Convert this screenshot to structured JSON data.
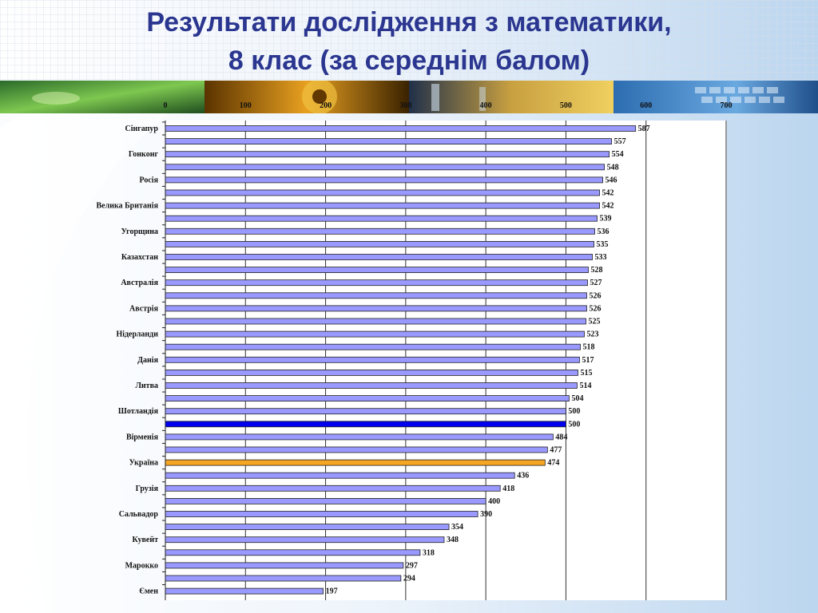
{
  "slide": {
    "title_line1": "Результати  дослідження з математики,",
    "title_line2": "8 клас (за середнім балом)"
  },
  "colors": {
    "title": "#2b3690",
    "bar_default": "#9999ff",
    "bar_reference": "#0000ee",
    "bar_ukraine": "#f5a623"
  },
  "chart_data": {
    "type": "bar",
    "orientation": "horizontal",
    "xlim": [
      0,
      700
    ],
    "xticks": [
      0,
      100,
      200,
      300,
      400,
      500,
      600,
      700
    ],
    "xaxis_position": "top",
    "grid": true,
    "categories": [
      "Сінгапур",
      "",
      "Гонконг",
      "",
      "Росія",
      "",
      "Велика Британія",
      "",
      "Угорщина",
      "",
      "Казахстан",
      "",
      "Австралія",
      "",
      "Австрія",
      "",
      "Нідерланди",
      "",
      "Данія",
      "",
      "Литва",
      "",
      "Шотландія",
      "",
      "Вірменія",
      "",
      "Україна",
      "",
      "Грузія",
      "",
      "Сальвадор",
      "",
      "Кувейт",
      "",
      "Марокко",
      "",
      "Ємен"
    ],
    "values": [
      587,
      557,
      554,
      548,
      546,
      542,
      542,
      539,
      536,
      535,
      533,
      528,
      527,
      526,
      526,
      525,
      523,
      518,
      517,
      515,
      514,
      504,
      500,
      500,
      484,
      477,
      474,
      436,
      418,
      400,
      390,
      354,
      348,
      318,
      297,
      294,
      197
    ],
    "highlight": {
      "reference_index": 23,
      "ukraine_index": 26
    }
  }
}
